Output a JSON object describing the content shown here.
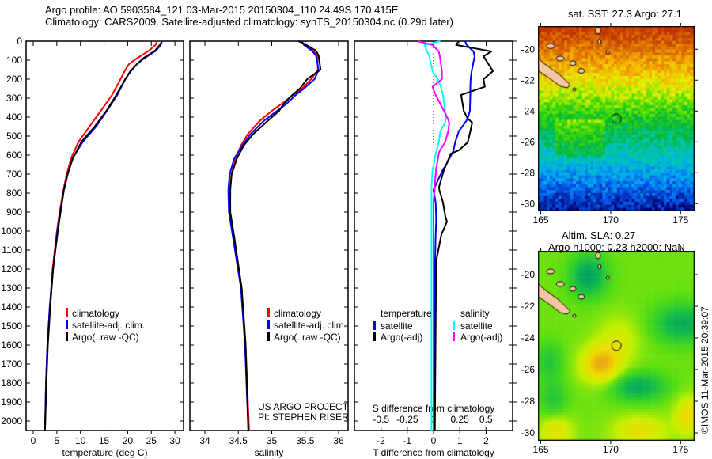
{
  "header": {
    "line1": "Argo profile: AO 5903584_121 03-Mar-2015 20150304_110 24.49S 170.415E",
    "line2": "Climatology: CARS2009. Satellite-adjusted climatology: synTS_20150304.nc (0.29d later)"
  },
  "credits": {
    "project": "US ARGO PROJECT",
    "pi": "PI: STEPHEN RISER",
    "watermark": "©IMOS 11-Mar-2015 20:39:07"
  },
  "colors": {
    "climatology": "#ff0000",
    "satellite": "#0000ff",
    "argo": "#000000",
    "sal_satellite": "#00ffff",
    "sal_argo": "#ff00ff"
  },
  "chart_data": [
    {
      "type": "line",
      "title": "",
      "xlabel": "temperature (deg C)",
      "ylabel": "",
      "xlim": [
        -1.5,
        31.5
      ],
      "ylim": [
        2050,
        0
      ],
      "xticks": [
        "0",
        "5",
        "10",
        "15",
        "20",
        "25",
        "30"
      ],
      "yticks": [
        "0",
        "100",
        "200",
        "300",
        "400",
        "500",
        "600",
        "700",
        "800",
        "900",
        "1000",
        "1100",
        "1200",
        "1300",
        "1400",
        "1500",
        "1600",
        "1700",
        "1800",
        "1900",
        "2000"
      ],
      "legend": [
        "climatology",
        "satellite-adj. clim.",
        "Argo(..raw -QC)"
      ],
      "legend_placement": "lower-center",
      "depth": [
        0,
        20,
        50,
        90,
        120,
        160,
        200,
        283,
        367,
        450,
        530,
        617,
        700,
        783,
        900,
        1004,
        1200,
        1400,
        1600,
        1800,
        2050
      ],
      "series": [
        {
          "name": "climatology",
          "values": [
            26.2,
            25.9,
            24.5,
            22.0,
            20.3,
            19.3,
            18.5,
            16.7,
            14.3,
            11.9,
            9.6,
            8.0,
            7.1,
            6.4,
            5.6,
            5.0,
            4.1,
            3.5,
            3.0,
            2.7,
            2.5
          ]
        },
        {
          "name": "satellite-adj. clim.",
          "values": [
            27.2,
            27.0,
            26.0,
            23.5,
            22.0,
            20.5,
            19.5,
            17.8,
            15.6,
            13.3,
            10.5,
            8.3,
            7.3,
            6.5,
            5.7,
            5.1,
            4.2,
            3.5,
            3.0,
            2.7,
            2.5
          ]
        },
        {
          "name": "Argo(..raw -QC)",
          "values": [
            27.3,
            26.8,
            25.8,
            23.3,
            22.0,
            20.6,
            19.5,
            17.6,
            15.5,
            13.0,
            10.2,
            8.4,
            7.3,
            6.5,
            5.8,
            5.2,
            4.2,
            3.6,
            3.1,
            2.8,
            2.5
          ]
        }
      ]
    },
    {
      "type": "line",
      "xlabel": "salinity",
      "xlim": [
        33.77,
        36.14
      ],
      "ylim": [
        2050,
        0
      ],
      "xticks": [
        "34",
        "34.5",
        "35",
        "35.5",
        "36"
      ],
      "legend": [
        "climatology",
        "satellite-adj. clim.",
        "Argo(..raw -QC)"
      ],
      "depth": [
        0,
        20,
        50,
        75,
        150,
        200,
        250,
        283,
        330,
        367,
        420,
        490,
        550,
        617,
        700,
        783,
        900,
        1033,
        1300,
        1600,
        2050
      ],
      "series": [
        {
          "name": "climatology",
          "values": [
            35.43,
            35.5,
            35.62,
            35.68,
            35.69,
            35.59,
            35.45,
            35.32,
            35.15,
            35.0,
            34.82,
            34.64,
            34.54,
            34.46,
            34.4,
            34.37,
            34.37,
            34.43,
            34.55,
            34.61,
            34.66
          ]
        },
        {
          "name": "satellite-adj. clim.",
          "values": [
            35.45,
            35.48,
            35.6,
            35.66,
            35.7,
            35.64,
            35.48,
            35.36,
            35.22,
            35.08,
            34.88,
            34.68,
            34.56,
            34.44,
            34.37,
            34.35,
            34.36,
            34.42,
            34.54,
            34.6,
            34.65
          ]
        },
        {
          "name": "Argo(..raw -QC)",
          "values": [
            35.4,
            35.52,
            35.66,
            35.7,
            35.73,
            35.53,
            35.42,
            35.31,
            35.18,
            35.11,
            34.94,
            34.72,
            34.58,
            34.48,
            34.4,
            34.38,
            34.38,
            34.44,
            34.55,
            34.61,
            34.65
          ]
        }
      ]
    },
    {
      "type": "line",
      "xlabel": "T difference from climatology",
      "xlabel2": "S difference from climatology",
      "xlim": [
        -3,
        3
      ],
      "x2lim": [
        -0.75,
        0.75
      ],
      "ylim": [
        2050,
        0
      ],
      "xticks": [
        "-2",
        "-1",
        "0",
        "1",
        "2"
      ],
      "x2ticks": [
        "-0.5",
        "-0.25",
        "0",
        "0.25",
        "0.5"
      ],
      "legend_temperature": {
        "title": "temperature",
        "items": [
          "satellite",
          "Argo(-adj)"
        ]
      },
      "legend_salinity": {
        "title": "salinity",
        "items": [
          "satellite",
          "Argo(-adj)"
        ]
      },
      "depth": [
        0,
        20,
        54,
        80,
        158,
        200,
        240,
        283,
        367,
        408,
        429,
        475,
        533,
        575,
        592,
        658,
        675,
        767,
        783,
        850,
        925,
        950,
        1017,
        1158,
        1500,
        2050
      ],
      "series": [
        {
          "name": "T satellite",
          "values": [
            1.2,
            1.26,
            1.52,
            1.56,
            1.45,
            1.41,
            1.4,
            1.4,
            1.38,
            1.3,
            1.2,
            0.96,
            0.82,
            0.76,
            0.7,
            0.45,
            0.36,
            0.05,
            0.0,
            0.08,
            0.1,
            0.1,
            0.08,
            0.06,
            0.05,
            0.04
          ]
        },
        {
          "name": "T Argo(-adj)",
          "values": [
            0.96,
            0.86,
            2.2,
            1.9,
            2.26,
            1.9,
            1.95,
            1.05,
            1.15,
            1.3,
            1.47,
            1.4,
            1.3,
            0.96,
            0.66,
            0.46,
            0.4,
            0.21,
            0.22,
            0.36,
            0.45,
            0.51,
            0.3,
            0.1,
            0.08,
            0.05
          ]
        },
        {
          "name": "S satellite",
          "values": [
            0.065,
            -0.085,
            -0.06,
            -0.04,
            -0.01,
            0.04,
            0.07,
            0.09,
            0.11,
            0.12,
            0.11,
            0.065,
            0.05,
            0.03,
            0.02,
            0.0,
            -0.01,
            -0.02,
            -0.02,
            -0.02,
            -0.02,
            -0.02,
            -0.02,
            -0.02,
            -0.02,
            -0.02
          ]
        },
        {
          "name": "S Argo(-adj)",
          "values": [
            -0.15,
            -0.01,
            0.05,
            0.06,
            0.08,
            0.08,
            -0.01,
            0.02,
            0.1,
            0.136,
            0.15,
            0.14,
            0.11,
            0.06,
            0.05,
            0.03,
            0.025,
            0.01,
            0.01,
            0.0,
            0.0,
            0.0,
            0.0,
            0.0,
            0.0,
            0.0
          ]
        }
      ]
    },
    {
      "type": "heatmap",
      "title": "sat. SST: 27.3 Argo: 27.1",
      "xlim": [
        164.8,
        176
      ],
      "ylim": [
        -30.5,
        -18.5
      ],
      "xticks": [
        "165",
        "170",
        "175"
      ],
      "yticks": [
        "-20",
        "-22",
        "-24",
        "-26",
        "-28",
        "-30"
      ],
      "marker": {
        "lon": 170.415,
        "lat": -24.49
      }
    },
    {
      "type": "heatmap",
      "title": "Altim. SLA: 0.27",
      "subtitle": "Argo h1000: 0.23 h2000: NaN",
      "xlim": [
        164.8,
        176
      ],
      "ylim": [
        -30.5,
        -18.5
      ],
      "xticks": [
        "165",
        "170",
        "175"
      ],
      "yticks": [
        "-20",
        "-22",
        "-24",
        "-26",
        "-28",
        "-30"
      ],
      "marker": {
        "lon": 170.415,
        "lat": -24.49
      }
    }
  ]
}
